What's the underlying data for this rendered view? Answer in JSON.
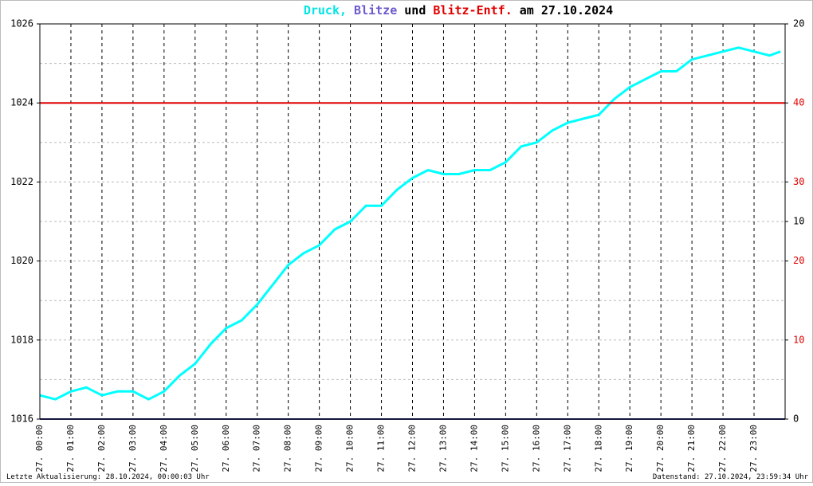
{
  "chart_data": {
    "type": "line",
    "title_parts": [
      "und",
      "am 27.10.2024"
    ],
    "footer_left": "Letzte Aktualisierung: 28.10.2024, 00:00:03 Uhr",
    "footer_right": "Datenstand: 27.10.2024, 23:59:34 Uhr",
    "x": [
      0,
      0.5,
      1,
      1.5,
      2,
      2.5,
      3,
      3.5,
      4,
      4.5,
      5,
      5.5,
      6,
      6.5,
      7,
      7.5,
      8,
      8.5,
      9,
      9.5,
      10,
      10.5,
      11,
      11.5,
      12,
      12.5,
      13,
      13.5,
      14,
      14.5,
      15,
      15.5,
      16,
      16.5,
      17,
      17.5,
      18,
      18.5,
      19,
      19.5,
      20,
      20.5,
      21,
      21.5,
      22,
      22.5,
      23,
      23.5,
      23.85
    ],
    "xlim": [
      0,
      24
    ],
    "xticks": [
      {
        "value": 0,
        "label": "27. 00:00"
      },
      {
        "value": 1,
        "label": "27. 01:00"
      },
      {
        "value": 2,
        "label": "27. 02:00"
      },
      {
        "value": 3,
        "label": "27. 03:00"
      },
      {
        "value": 4,
        "label": "27. 04:00"
      },
      {
        "value": 5,
        "label": "27. 05:00"
      },
      {
        "value": 6,
        "label": "27. 06:00"
      },
      {
        "value": 7,
        "label": "27. 07:00"
      },
      {
        "value": 8,
        "label": "27. 08:00"
      },
      {
        "value": 9,
        "label": "27. 09:00"
      },
      {
        "value": 10,
        "label": "27. 10:00"
      },
      {
        "value": 11,
        "label": "27. 11:00"
      },
      {
        "value": 12,
        "label": "27. 12:00"
      },
      {
        "value": 13,
        "label": "27. 13:00"
      },
      {
        "value": 14,
        "label": "27. 14:00"
      },
      {
        "value": 15,
        "label": "27. 15:00"
      },
      {
        "value": 16,
        "label": "27. 16:00"
      },
      {
        "value": 17,
        "label": "27. 17:00"
      },
      {
        "value": 18,
        "label": "27. 18:00"
      },
      {
        "value": 19,
        "label": "27. 19:00"
      },
      {
        "value": 20,
        "label": "27. 20:00"
      },
      {
        "value": 21,
        "label": "27. 21:00"
      },
      {
        "value": 22,
        "label": "27. 22:00"
      },
      {
        "value": 23,
        "label": "27. 23:00"
      }
    ],
    "ylim": [
      1016,
      1026
    ],
    "yticks": [
      1016,
      1018,
      1020,
      1022,
      1024,
      1026
    ],
    "yminor": [
      1017,
      1019,
      1021,
      1023,
      1025
    ],
    "y2lim": [
      0,
      50
    ],
    "y2ticks": [
      10,
      20,
      30,
      40
    ],
    "y2color": "#e00000",
    "y3lim": [
      0,
      20
    ],
    "y3ticks": [
      0,
      10,
      20
    ],
    "y3color": "#000000",
    "grid": true,
    "series": [
      {
        "name": "Druck,",
        "color": "#00ffff",
        "values": [
          1016.6,
          1016.5,
          1016.7,
          1016.8,
          1016.6,
          1016.7,
          1016.7,
          1016.5,
          1016.7,
          1017.1,
          1017.4,
          1017.9,
          1018.3,
          1018.5,
          1018.9,
          1019.4,
          1019.9,
          1020.2,
          1020.4,
          1020.8,
          1021.0,
          1021.4,
          1021.4,
          1021.8,
          1022.1,
          1022.3,
          1022.2,
          1022.2,
          1022.3,
          1022.3,
          1022.5,
          1022.9,
          1023.0,
          1023.3,
          1023.5,
          1023.6,
          1023.7,
          1024.1,
          1024.4,
          1024.6,
          1024.8,
          1024.8,
          1025.1,
          1025.2,
          1025.3,
          1025.4,
          1025.3,
          1025.2,
          1025.3
        ]
      },
      {
        "name": "Blitze",
        "color": "#2a2a80",
        "axis": "y3",
        "x": [
          0,
          24
        ],
        "values": [
          0,
          0
        ]
      },
      {
        "name": "Blitz-Entf.",
        "color": "#e00000",
        "axis": "y2",
        "x": [
          0,
          24
        ],
        "values": [
          40,
          40
        ]
      }
    ]
  }
}
